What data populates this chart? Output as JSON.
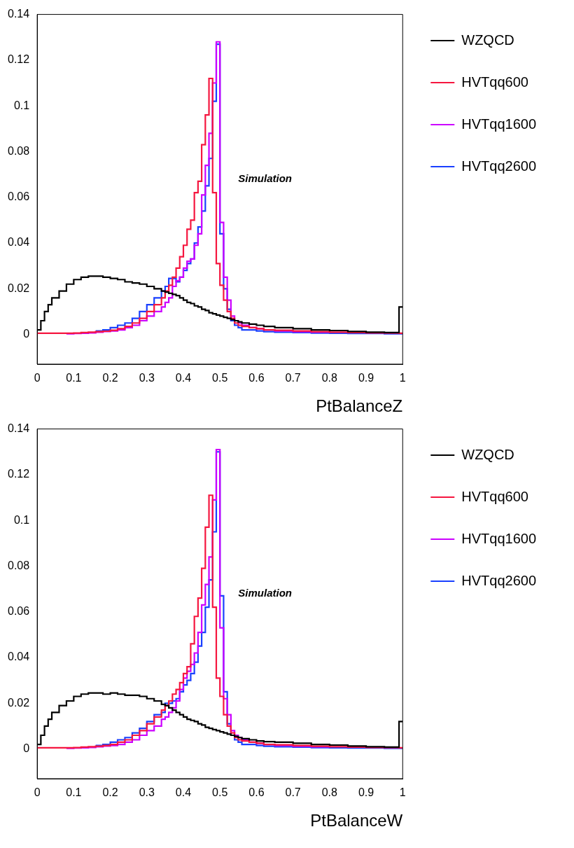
{
  "chart_data": [
    {
      "type": "step",
      "xlabel": "PtBalanceZ",
      "annotations": [
        "Simulation"
      ],
      "legend": "top right",
      "xlim": [
        0,
        1
      ],
      "ylim": [
        -0.013,
        0.14
      ],
      "xticks": [
        0,
        0.1,
        0.2,
        0.3,
        0.4,
        0.5,
        0.6,
        0.7,
        0.8,
        0.9,
        1
      ],
      "yticks": [
        0,
        0.02,
        0.04,
        0.06,
        0.08,
        0.1,
        0.12,
        0.14
      ],
      "x": [
        0,
        0.01,
        0.02,
        0.03,
        0.04,
        0.06,
        0.08,
        0.1,
        0.12,
        0.14,
        0.16,
        0.18,
        0.2,
        0.22,
        0.24,
        0.26,
        0.28,
        0.3,
        0.32,
        0.34,
        0.35,
        0.36,
        0.37,
        0.38,
        0.39,
        0.4,
        0.41,
        0.42,
        0.43,
        0.44,
        0.45,
        0.46,
        0.47,
        0.48,
        0.49,
        0.5,
        0.51,
        0.52,
        0.53,
        0.54,
        0.55,
        0.56,
        0.58,
        0.6,
        0.62,
        0.65,
        0.7,
        0.75,
        0.8,
        0.85,
        0.9,
        0.95,
        0.99,
        1
      ],
      "series": [
        {
          "name": "WZQCD",
          "color": "#000000",
          "values": [
            0.002,
            0.006,
            0.01,
            0.013,
            0.016,
            0.019,
            0.022,
            0.024,
            0.025,
            0.0255,
            0.0255,
            0.025,
            0.0245,
            0.024,
            0.023,
            0.0225,
            0.022,
            0.021,
            0.02,
            0.019,
            0.0185,
            0.018,
            0.0175,
            0.017,
            0.016,
            0.015,
            0.014,
            0.0135,
            0.0125,
            0.012,
            0.011,
            0.0105,
            0.0095,
            0.009,
            0.0085,
            0.008,
            0.0075,
            0.007,
            0.0065,
            0.006,
            0.0055,
            0.005,
            0.0045,
            0.004,
            0.0035,
            0.003,
            0.0025,
            0.002,
            0.0017,
            0.0013,
            0.001,
            0.0008,
            0.012,
            0.012
          ]
        },
        {
          "name": "HVTqq600",
          "color": "#f5163f",
          "values": [
            0.0005,
            0.0005,
            0.0005,
            0.0005,
            0.0005,
            0.0005,
            0.0005,
            0.0006,
            0.0008,
            0.001,
            0.0012,
            0.0014,
            0.0018,
            0.0025,
            0.0035,
            0.005,
            0.007,
            0.01,
            0.013,
            0.016,
            0.019,
            0.0215,
            0.025,
            0.029,
            0.034,
            0.039,
            0.046,
            0.05,
            0.062,
            0.067,
            0.083,
            0.096,
            0.112,
            0.062,
            0.031,
            0.0215,
            0.015,
            0.01,
            0.007,
            0.005,
            0.004,
            0.0035,
            0.003,
            0.0025,
            0.002,
            0.0018,
            0.0015,
            0.0012,
            0.001,
            0.0008,
            0.0007,
            0.0006,
            0.0005,
            0.0005
          ]
        },
        {
          "name": "HVTqq1600",
          "color": "#cc00ff",
          "values": [
            null,
            null,
            null,
            null,
            null,
            null,
            0.0003,
            0.0004,
            0.0005,
            0.0007,
            0.001,
            0.0013,
            0.0015,
            0.002,
            0.003,
            0.004,
            0.006,
            0.008,
            0.01,
            0.012,
            0.014,
            0.016,
            0.021,
            0.0235,
            0.025,
            0.029,
            0.032,
            0.033,
            0.039,
            0.044,
            0.061,
            0.074,
            0.088,
            0.11,
            0.128,
            0.049,
            0.025,
            0.015,
            0.008,
            0.006,
            0.005,
            0.004,
            0.003,
            0.0025,
            0.002,
            0.0015,
            0.0012,
            0.001,
            0.0008,
            null,
            null,
            null,
            null,
            null
          ]
        },
        {
          "name": "HVTqq2600",
          "color": "#1a40ff",
          "values": [
            null,
            null,
            null,
            null,
            null,
            null,
            null,
            null,
            null,
            null,
            0.0015,
            0.002,
            0.003,
            0.004,
            0.005,
            0.007,
            0.01,
            0.013,
            0.016,
            0.019,
            0.021,
            0.0245,
            0.0245,
            0.023,
            0.025,
            0.028,
            0.031,
            0.033,
            0.04,
            0.047,
            0.054,
            0.065,
            0.077,
            0.102,
            0.127,
            0.044,
            0.02,
            0.011,
            0.006,
            0.004,
            0.003,
            0.002,
            0.002,
            0.0015,
            0.0012,
            0.001,
            0.0008,
            0.0006,
            0.0005,
            0.0004,
            0.0004,
            0.0003,
            0.0003,
            0.0003
          ]
        }
      ]
    },
    {
      "type": "step",
      "xlabel": "PtBalanceW",
      "annotations": [
        "Simulation"
      ],
      "legend": "top right",
      "xlim": [
        0,
        1
      ],
      "ylim": [
        -0.013,
        0.14
      ],
      "xticks": [
        0,
        0.1,
        0.2,
        0.3,
        0.4,
        0.5,
        0.6,
        0.7,
        0.8,
        0.9,
        1
      ],
      "yticks": [
        0,
        0.02,
        0.04,
        0.06,
        0.08,
        0.1,
        0.12,
        0.14
      ],
      "x": [
        0,
        0.01,
        0.02,
        0.03,
        0.04,
        0.06,
        0.08,
        0.1,
        0.12,
        0.14,
        0.16,
        0.18,
        0.2,
        0.22,
        0.24,
        0.26,
        0.28,
        0.3,
        0.32,
        0.34,
        0.35,
        0.36,
        0.37,
        0.38,
        0.39,
        0.4,
        0.41,
        0.42,
        0.43,
        0.44,
        0.45,
        0.46,
        0.47,
        0.48,
        0.49,
        0.5,
        0.51,
        0.52,
        0.53,
        0.54,
        0.55,
        0.56,
        0.58,
        0.6,
        0.62,
        0.65,
        0.7,
        0.75,
        0.8,
        0.85,
        0.9,
        0.95,
        0.99,
        1
      ],
      "series": [
        {
          "name": "WZQCD",
          "color": "#000000",
          "values": [
            0.002,
            0.006,
            0.01,
            0.013,
            0.016,
            0.019,
            0.021,
            0.023,
            0.024,
            0.0245,
            0.0245,
            0.024,
            0.0245,
            0.024,
            0.0235,
            0.0235,
            0.023,
            0.022,
            0.021,
            0.0195,
            0.019,
            0.018,
            0.017,
            0.016,
            0.015,
            0.014,
            0.013,
            0.0125,
            0.012,
            0.011,
            0.0105,
            0.0095,
            0.009,
            0.0085,
            0.008,
            0.0075,
            0.007,
            0.0065,
            0.006,
            0.0055,
            0.005,
            0.0045,
            0.004,
            0.0035,
            0.0032,
            0.003,
            0.0025,
            0.002,
            0.0017,
            0.0013,
            0.001,
            0.0008,
            0.012,
            0.012
          ]
        },
        {
          "name": "HVTqq600",
          "color": "#f5163f",
          "values": [
            0.0005,
            0.0005,
            0.0005,
            0.0005,
            0.0005,
            0.0005,
            0.0005,
            0.0006,
            0.0008,
            0.001,
            0.0012,
            0.0015,
            0.002,
            0.003,
            0.004,
            0.006,
            0.008,
            0.011,
            0.014,
            0.017,
            0.019,
            0.021,
            0.024,
            0.026,
            0.029,
            0.033,
            0.036,
            0.046,
            0.058,
            0.066,
            0.079,
            0.097,
            0.111,
            0.062,
            0.031,
            0.023,
            0.015,
            0.01,
            0.007,
            0.005,
            0.004,
            0.0035,
            0.003,
            0.0025,
            0.002,
            0.0018,
            0.0015,
            0.0012,
            0.001,
            0.0008,
            0.0007,
            0.0006,
            0.0005,
            0.0005
          ]
        },
        {
          "name": "HVTqq1600",
          "color": "#cc00ff",
          "values": [
            null,
            null,
            null,
            null,
            null,
            null,
            0.0003,
            0.0004,
            0.0005,
            0.0007,
            0.001,
            0.0013,
            0.0015,
            0.002,
            0.003,
            0.004,
            0.006,
            0.008,
            0.01,
            0.013,
            0.014,
            0.016,
            0.018,
            0.021,
            0.026,
            0.031,
            0.034,
            0.037,
            0.042,
            0.051,
            0.063,
            0.072,
            0.084,
            0.109,
            0.131,
            0.053,
            0.022,
            0.015,
            0.008,
            0.006,
            0.005,
            0.004,
            0.003,
            0.0025,
            0.002,
            0.0015,
            0.0012,
            0.001,
            0.0008,
            null,
            null,
            null,
            null,
            null
          ]
        },
        {
          "name": "HVTqq2600",
          "color": "#1a40ff",
          "values": [
            null,
            null,
            null,
            null,
            null,
            null,
            null,
            null,
            null,
            null,
            0.0015,
            0.002,
            0.003,
            0.004,
            0.005,
            0.007,
            0.009,
            0.012,
            0.015,
            0.016,
            0.02,
            0.02,
            0.021,
            0.022,
            0.025,
            0.028,
            0.03,
            0.033,
            0.038,
            0.045,
            0.051,
            0.062,
            0.074,
            0.095,
            0.13,
            0.067,
            0.025,
            0.011,
            0.006,
            0.004,
            0.003,
            0.002,
            0.002,
            0.0015,
            0.0012,
            0.001,
            0.0008,
            0.0006,
            0.0005,
            0.0004,
            0.0004,
            0.0003,
            0.0003,
            0.0003
          ]
        }
      ]
    }
  ]
}
